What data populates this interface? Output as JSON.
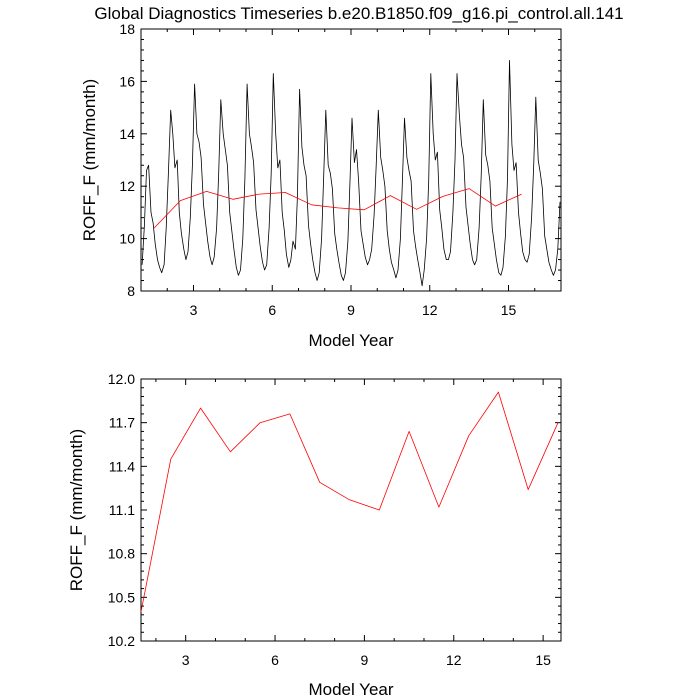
{
  "title": "Global Diagnostics Timeseries b.e20.B1850.f09_g16.pi_control.all.141",
  "chart_data": [
    {
      "type": "line",
      "xlabel": "Model Year",
      "ylabel": "ROFF_F (mm/month)",
      "xlim": [
        1,
        17
      ],
      "ylim": [
        8,
        18
      ],
      "xticks": [
        3,
        6,
        9,
        12,
        15
      ],
      "yticks": [
        8,
        10,
        12,
        14,
        16,
        18
      ],
      "grid": false,
      "series": [
        {
          "color": "#000000",
          "x": [
            1.04,
            1.13,
            1.21,
            1.29,
            1.38,
            1.46,
            1.54,
            1.63,
            1.71,
            1.79,
            1.88,
            1.96,
            2.04,
            2.13,
            2.21,
            2.29,
            2.38,
            2.46,
            2.54,
            2.63,
            2.71,
            2.79,
            2.88,
            2.96,
            3.04,
            3.13,
            3.21,
            3.29,
            3.38,
            3.46,
            3.54,
            3.63,
            3.71,
            3.79,
            3.88,
            3.96,
            4.04,
            4.13,
            4.21,
            4.29,
            4.38,
            4.46,
            4.54,
            4.63,
            4.71,
            4.79,
            4.88,
            4.96,
            5.04,
            5.13,
            5.21,
            5.29,
            5.38,
            5.46,
            5.54,
            5.63,
            5.71,
            5.79,
            5.88,
            5.96,
            6.04,
            6.13,
            6.21,
            6.29,
            6.38,
            6.46,
            6.54,
            6.63,
            6.71,
            6.79,
            6.88,
            6.96,
            7.04,
            7.13,
            7.21,
            7.29,
            7.38,
            7.46,
            7.54,
            7.63,
            7.71,
            7.79,
            7.88,
            7.96,
            8.04,
            8.13,
            8.21,
            8.29,
            8.38,
            8.46,
            8.54,
            8.63,
            8.71,
            8.79,
            8.88,
            8.96,
            9.04,
            9.13,
            9.21,
            9.29,
            9.38,
            9.46,
            9.54,
            9.63,
            9.71,
            9.79,
            9.88,
            9.96,
            10.04,
            10.13,
            10.21,
            10.29,
            10.38,
            10.46,
            10.54,
            10.63,
            10.71,
            10.79,
            10.88,
            10.96,
            11.04,
            11.13,
            11.21,
            11.29,
            11.38,
            11.46,
            11.54,
            11.63,
            11.71,
            11.79,
            11.88,
            11.96,
            12.04,
            12.13,
            12.21,
            12.29,
            12.38,
            12.46,
            12.54,
            12.63,
            12.71,
            12.79,
            12.88,
            12.96,
            13.04,
            13.13,
            13.21,
            13.29,
            13.38,
            13.46,
            13.54,
            13.63,
            13.71,
            13.79,
            13.88,
            13.96,
            14.04,
            14.13,
            14.21,
            14.29,
            14.38,
            14.46,
            14.54,
            14.63,
            14.71,
            14.79,
            14.88,
            14.96,
            15.04,
            15.13,
            15.21,
            15.29,
            15.38,
            15.46,
            15.54,
            15.63,
            15.71,
            15.79,
            15.88,
            15.96,
            16.04,
            16.13,
            16.21,
            16.29,
            16.38,
            16.46,
            16.54,
            16.63,
            16.71,
            16.79,
            16.88,
            16.96
          ],
          "values": [
            9.0,
            10.5,
            12.6,
            12.8,
            11.0,
            10.6,
            9.8,
            9.2,
            8.9,
            8.7,
            9.0,
            10.4,
            12.4,
            14.9,
            14.0,
            12.7,
            13.0,
            11.0,
            10.2,
            9.6,
            9.2,
            9.5,
            10.8,
            12.8,
            15.9,
            14.0,
            13.7,
            13.1,
            11.3,
            10.6,
            9.9,
            9.3,
            9.0,
            9.3,
            10.4,
            12.5,
            15.3,
            14.0,
            13.4,
            12.8,
            11.0,
            10.3,
            9.6,
            8.9,
            8.6,
            8.8,
            10.0,
            12.3,
            15.9,
            14.0,
            13.5,
            12.9,
            11.1,
            10.4,
            9.7,
            9.1,
            8.8,
            9.0,
            10.4,
            12.5,
            16.3,
            14.0,
            12.7,
            13.0,
            11.0,
            10.3,
            9.4,
            8.9,
            9.2,
            9.9,
            9.6,
            11.6,
            15.7,
            13.5,
            12.8,
            12.4,
            10.5,
            9.8,
            9.2,
            8.7,
            8.4,
            8.7,
            10.0,
            12.4,
            14.9,
            12.8,
            12.5,
            11.9,
            10.2,
            9.6,
            9.1,
            8.6,
            8.4,
            8.7,
            9.9,
            12.2,
            14.6,
            12.9,
            13.4,
            12.2,
            10.3,
            9.8,
            9.3,
            9.0,
            9.2,
            9.6,
            10.9,
            12.8,
            14.9,
            13.1,
            12.6,
            12.0,
            10.3,
            9.6,
            9.1,
            8.8,
            8.5,
            8.8,
            10.0,
            12.3,
            14.6,
            13.1,
            12.6,
            12.2,
            10.3,
            9.7,
            9.2,
            8.7,
            8.2,
            8.8,
            10.0,
            12.2,
            16.3,
            14.0,
            13.0,
            13.3,
            11.1,
            10.4,
            9.6,
            9.2,
            9.2,
            9.5,
            11.0,
            13.0,
            16.3,
            14.7,
            13.6,
            13.1,
            11.2,
            10.5,
            9.8,
            9.2,
            9.0,
            9.2,
            10.4,
            12.4,
            15.3,
            13.2,
            12.8,
            12.2,
            10.4,
            9.8,
            9.2,
            8.7,
            8.6,
            8.9,
            10.1,
            12.3,
            16.8,
            13.6,
            12.6,
            12.9,
            11.0,
            10.2,
            9.5,
            9.2,
            9.1,
            9.4,
            10.8,
            12.8,
            15.4,
            13.0,
            12.5,
            11.9,
            10.1,
            9.6,
            9.1,
            8.8,
            8.6,
            8.8,
            9.6,
            11.4
          ]
        },
        {
          "color": "#ff0000",
          "x": [
            1.5,
            2.5,
            3.5,
            4.5,
            5.5,
            6.5,
            7.5,
            8.5,
            9.5,
            10.5,
            11.5,
            12.5,
            13.5,
            14.5,
            15.5
          ],
          "values": [
            10.4,
            11.45,
            11.8,
            11.5,
            11.7,
            11.76,
            11.29,
            11.17,
            11.1,
            11.64,
            11.12,
            11.61,
            11.91,
            11.24,
            11.7
          ]
        }
      ]
    },
    {
      "type": "line",
      "xlabel": "Model Year",
      "ylabel": "ROFF_F (mm/month)",
      "xlim": [
        1.5,
        15.6
      ],
      "ylim": [
        10.2,
        12.0
      ],
      "xticks": [
        3,
        6,
        9,
        12,
        15
      ],
      "yticks": [
        10.2,
        10.5,
        10.8,
        11.1,
        11.4,
        11.7,
        12.0
      ],
      "ytick_labels": [
        "10.2",
        "10.5",
        "10.8",
        "11.1",
        "11.4",
        "11.7",
        "12.0"
      ],
      "grid": false,
      "series": [
        {
          "color": "#ff0000",
          "x": [
            1.5,
            2.5,
            3.5,
            4.5,
            5.5,
            6.5,
            7.5,
            8.5,
            9.5,
            10.5,
            11.5,
            12.5,
            13.5,
            14.5,
            15.5
          ],
          "values": [
            10.4,
            11.45,
            11.8,
            11.5,
            11.7,
            11.76,
            11.29,
            11.17,
            11.1,
            11.64,
            11.12,
            11.61,
            11.91,
            11.24,
            11.7
          ]
        }
      ]
    }
  ]
}
